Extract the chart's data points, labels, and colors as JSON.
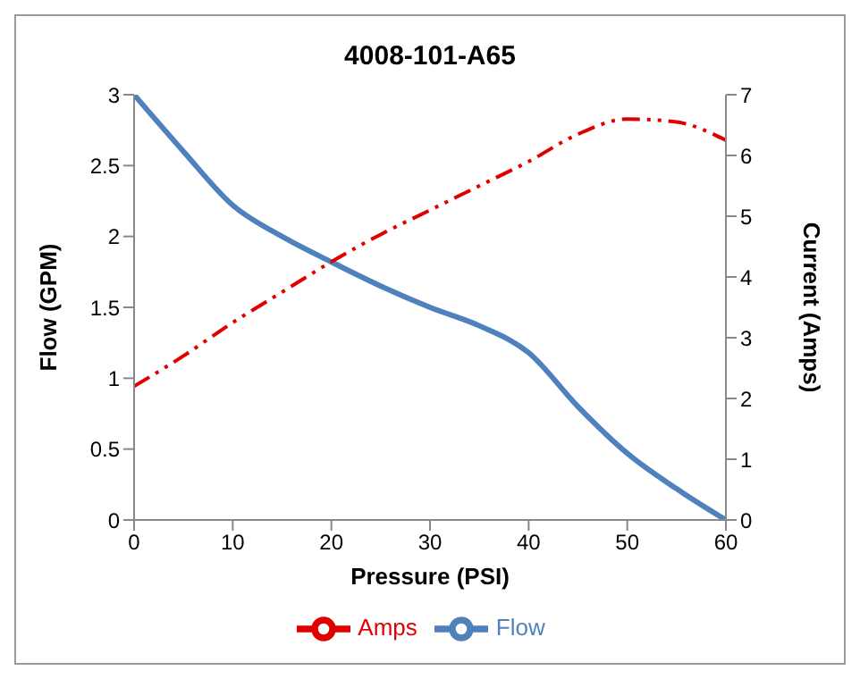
{
  "chart_data": {
    "type": "line",
    "title": "4008-101-A65",
    "xlabel": "Pressure (PSI)",
    "ylabel": "Flow (GPM)",
    "y2label": "Current (Amps)",
    "x": [
      0,
      5,
      10,
      15,
      20,
      25,
      30,
      35,
      40,
      45,
      50,
      55,
      60
    ],
    "series": [
      {
        "name": "Flow",
        "color": "#4f81bd",
        "line_style": "solid",
        "values": [
          3,
          2.6,
          2.22,
          2.0,
          1.82,
          1.65,
          1.5,
          1.37,
          1.18,
          0.8,
          0.47,
          0.22,
          0
        ]
      },
      {
        "name": "Amps",
        "color": "#e00000",
        "line_style": "dashed",
        "axis": "y2",
        "values": [
          2.2,
          2.7,
          3.25,
          3.75,
          4.25,
          4.7,
          5.1,
          5.5,
          5.9,
          6.35,
          6.6,
          6.55,
          6.25
        ]
      }
    ],
    "xlim": [
      0,
      60
    ],
    "xticks": [
      0,
      10,
      20,
      30,
      40,
      50,
      60
    ],
    "ylim": [
      0,
      3
    ],
    "yticks": [
      0,
      0.5,
      1,
      1.5,
      2,
      2.5,
      3
    ],
    "y2lim": [
      0,
      7
    ],
    "y2ticks": [
      0,
      1,
      2,
      3,
      4,
      5,
      6,
      7
    ],
    "grid": false,
    "legend": "bottom",
    "marker": "none"
  }
}
